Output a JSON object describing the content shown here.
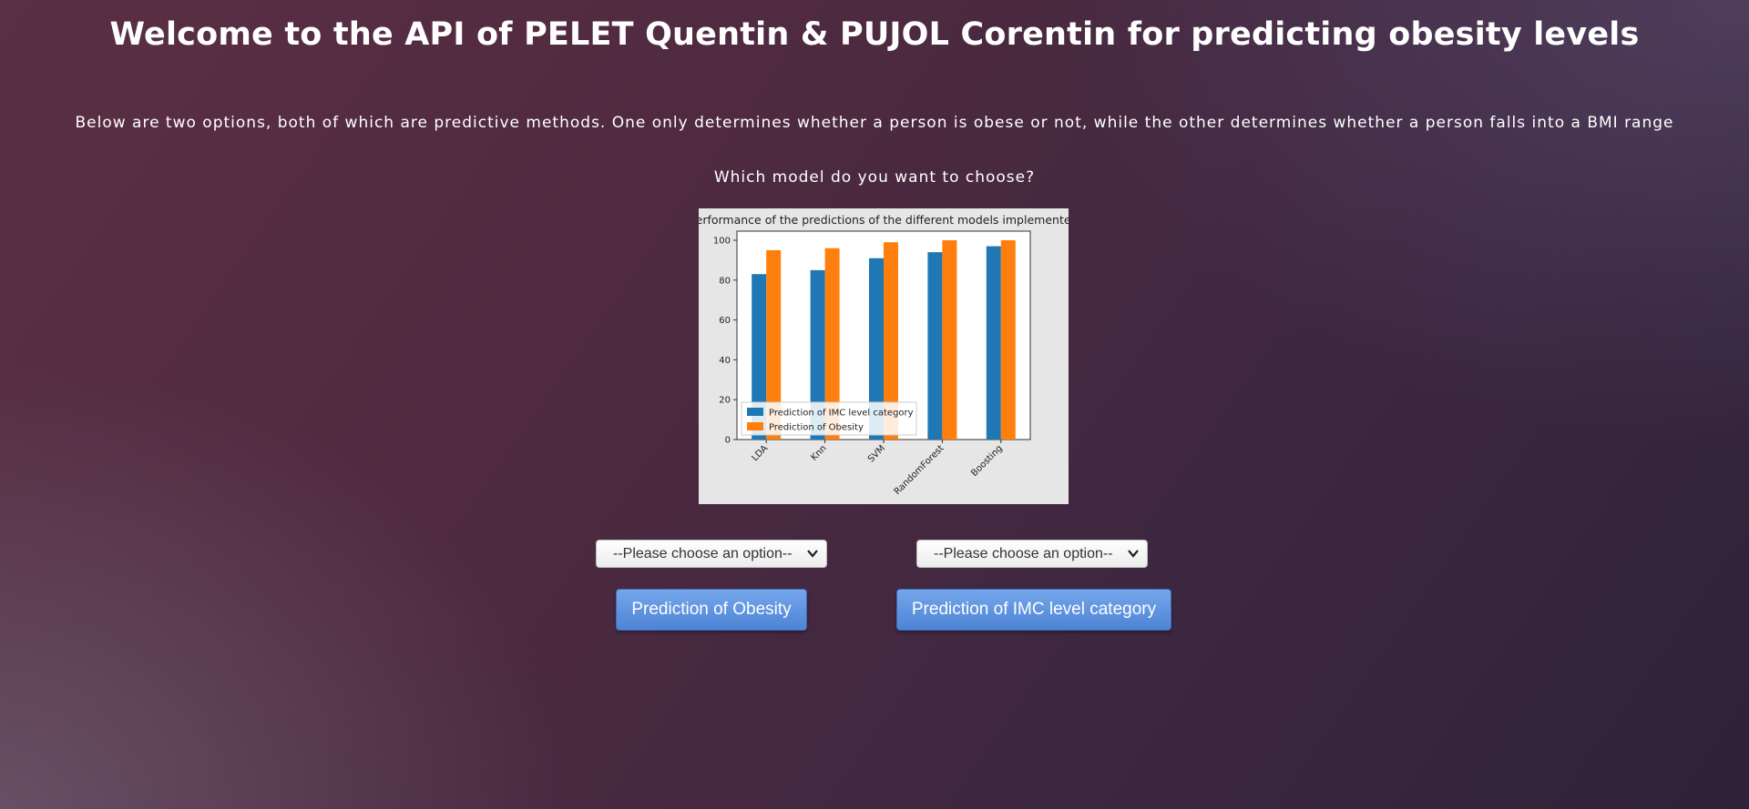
{
  "header": {
    "title": "Welcome to the API of PELET Quentin & PUJOL Corentin for predicting obesity levels"
  },
  "intro": "Below are two options, both of which are predictive methods. One only determines whether a person is obese or not, while the other determines whether a person falls into a BMI range",
  "question": "Which model do you want to choose?",
  "chart_data": {
    "type": "bar",
    "title": "Performance of the predictions of the different models implemented",
    "categories": [
      "LDA",
      "Knn",
      "SVM",
      "RandomForest",
      "Boosting"
    ],
    "series": [
      {
        "name": "Prediction of IMC level category",
        "values": [
          83,
          85,
          91,
          94,
          97
        ],
        "color": "#1f77b4"
      },
      {
        "name": "Prediction of Obesity",
        "values": [
          95,
          96,
          99,
          100,
          100
        ],
        "color": "#ff7f0e"
      }
    ],
    "yticks": [
      0,
      20,
      40,
      60,
      80,
      100
    ],
    "ylim": [
      0,
      100
    ],
    "legend": "lower-left",
    "grid": false
  },
  "controls": {
    "obesity_select": {
      "value": "--Please choose an option--"
    },
    "imc_select": {
      "value": "--Please choose an option--"
    },
    "obesity_button": "Prediction of Obesity",
    "imc_button": "Prediction of IMC level category"
  },
  "colors": {
    "button": "#5b8fdc"
  },
  "icons": {
    "select_arrow": "chevron-down-icon"
  }
}
